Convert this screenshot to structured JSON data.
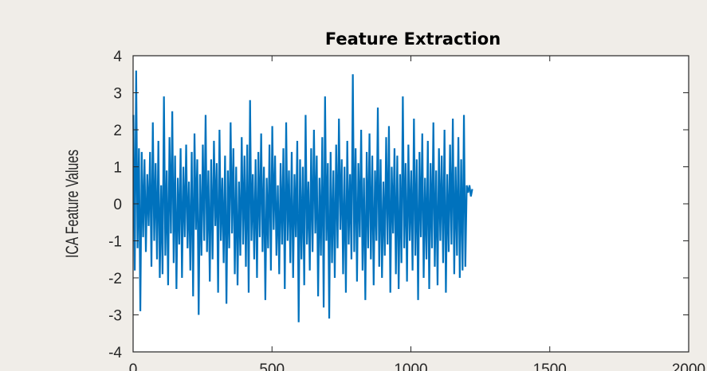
{
  "chart_data": {
    "type": "line",
    "title": "Feature Extraction",
    "xlabel": "",
    "ylabel": "ICA Feature Values",
    "xlim": [
      0,
      2000
    ],
    "ylim": [
      -4,
      4
    ],
    "x_ticks": [
      0,
      500,
      1000,
      1500,
      2000
    ],
    "x_tick_labels": [
      "0",
      "500",
      "1000",
      "1500",
      "2000"
    ],
    "y_ticks": [
      4,
      3,
      2,
      1,
      0,
      -1,
      -2,
      -3,
      -4
    ],
    "y_tick_labels": [
      "4",
      "3",
      "2",
      "1",
      "0",
      "-1",
      "-2",
      "-3",
      "-4"
    ],
    "grid": false,
    "series": [
      {
        "color": "#0072bd",
        "x_start": 1,
        "x_step": 5,
        "values": [
          2.4,
          -1.8,
          3.6,
          -1.2,
          1.5,
          -2.9,
          1.4,
          -0.9,
          1.2,
          -1.3,
          0.8,
          -0.6,
          1.4,
          -1.7,
          2.2,
          -1.0,
          1.1,
          -1.5,
          1.7,
          -2.0,
          0.5,
          -1.9,
          2.9,
          -1.4,
          0.9,
          -2.2,
          1.8,
          -0.8,
          2.5,
          -1.6,
          1.3,
          -2.3,
          0.7,
          -1.1,
          1.5,
          -2.0,
          1.0,
          -0.9,
          1.6,
          -1.2,
          0.6,
          -1.8,
          1.4,
          -2.5,
          1.9,
          -0.7,
          1.2,
          -3.0,
          0.8,
          -1.4,
          1.6,
          -1.0,
          2.4,
          -1.3,
          0.9,
          -2.1,
          1.2,
          -1.5,
          1.7,
          -0.6,
          1.1,
          -2.4,
          2.0,
          -1.0,
          0.7,
          -1.6,
          1.3,
          -2.7,
          0.9,
          -1.2,
          2.2,
          -0.8,
          1.5,
          -1.9,
          1.0,
          -2.2,
          0.6,
          -1.4,
          1.8,
          -1.1,
          1.3,
          -1.7,
          1.6,
          -2.4,
          2.8,
          -1.0,
          0.8,
          -1.5,
          1.2,
          -2.0,
          1.4,
          -0.9,
          1.9,
          -1.3,
          1.0,
          -2.6,
          0.7,
          -1.2,
          1.6,
          -1.8,
          2.1,
          -0.7,
          1.3,
          -1.4,
          0.5,
          -1.9,
          1.1,
          -1.1,
          1.5,
          -2.3,
          2.2,
          -1.0,
          0.9,
          -1.6,
          1.4,
          -2.0,
          0.8,
          -0.9,
          1.7,
          -3.2,
          1.2,
          -1.5,
          1.0,
          -2.2,
          2.4,
          -1.1,
          0.6,
          -1.8,
          1.5,
          -1.3,
          2.0,
          -0.8,
          1.3,
          -2.5,
          0.7,
          -1.4,
          1.8,
          -2.8,
          2.9,
          -1.0,
          1.1,
          -3.1,
          1.4,
          -1.6,
          0.9,
          -2.0,
          1.6,
          -1.2,
          2.3,
          -0.7,
          1.2,
          -1.9,
          1.0,
          -2.4,
          1.7,
          -1.1,
          0.8,
          -1.5,
          3.5,
          -1.3,
          1.5,
          -2.1,
          1.1,
          -0.9,
          2.0,
          -1.8,
          0.7,
          -2.6,
          1.4,
          -1.2,
          1.9,
          -1.5,
          1.3,
          -2.2,
          0.9,
          -1.0,
          2.6,
          -1.7,
          1.2,
          -2.0,
          0.6,
          -1.4,
          1.8,
          -1.1,
          2.1,
          -2.4,
          1.0,
          -0.8,
          1.5,
          -1.9,
          1.3,
          -2.3,
          0.8,
          -1.6,
          2.9,
          -1.2,
          1.1,
          -2.1,
          1.6,
          -1.0,
          0.9,
          -1.8,
          2.3,
          -1.4,
          1.2,
          -2.6,
          1.4,
          -0.9,
          1.9,
          -2.0,
          0.7,
          -1.5,
          1.7,
          -2.3,
          1.1,
          -1.2,
          2.2,
          -1.7,
          0.9,
          -2.2,
          1.5,
          -1.0,
          1.3,
          -1.6,
          2.0,
          -2.4,
          0.8,
          -1.3,
          1.6,
          -1.1,
          2.3,
          -1.9,
          1.0,
          -1.4,
          1.8,
          -2.0,
          1.2,
          -1.8,
          2.4,
          -1.7,
          0.5,
          0.3,
          0.5,
          0.2,
          0.4
        ]
      }
    ]
  }
}
